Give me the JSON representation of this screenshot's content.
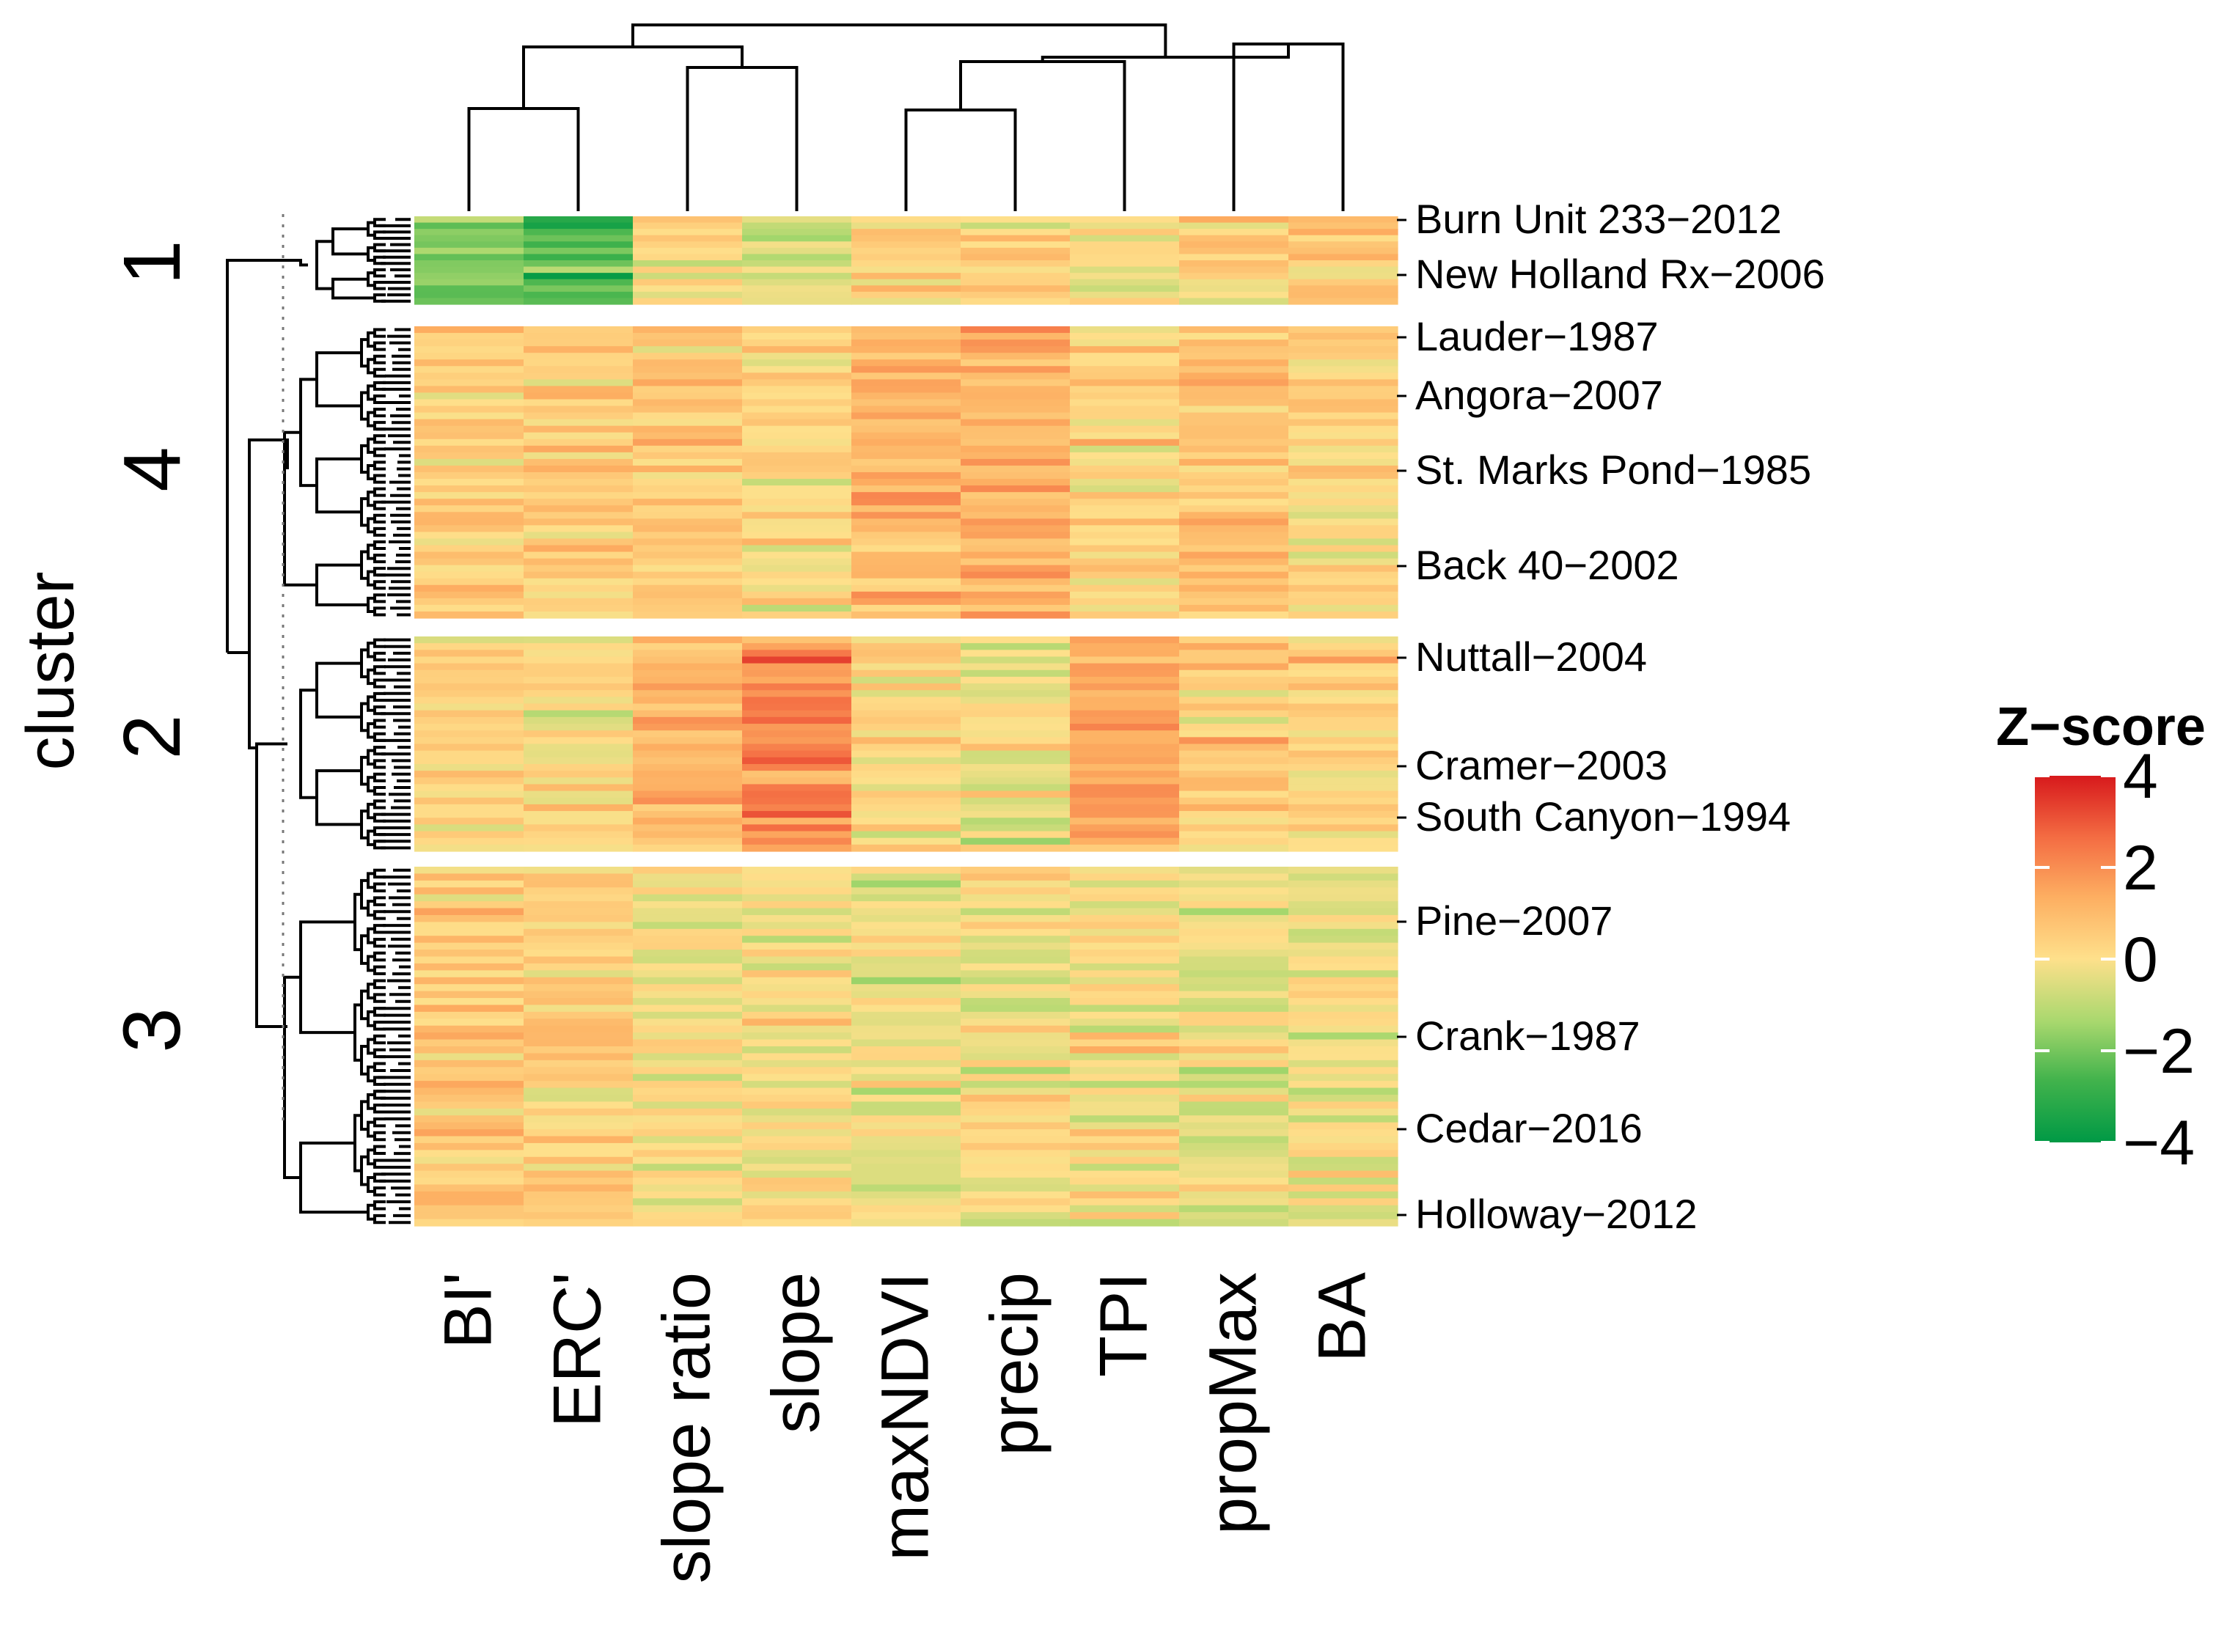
{
  "chart_data": {
    "type": "heatmap",
    "title": "",
    "columns": [
      "BI'",
      "ERC'",
      "slope ratio",
      "slope",
      "maxNDVI",
      "precip",
      "TPI",
      "propMax",
      "BA"
    ],
    "cluster_axis_title": "cluster",
    "clusters": [
      {
        "id": "1",
        "label": "1",
        "row_count": 14,
        "row_labels": [
          "Burn Unit 233−2012",
          "New Holland Rx−2006"
        ],
        "column_mean_zscores": [
          -2.0,
          -2.7,
          0.2,
          -0.7,
          0.1,
          0.4,
          -0.4,
          0.3,
          0.6
        ],
        "profile": [
          "L",
          "L",
          "M",
          "L",
          "M",
          "M",
          "L",
          "M",
          "M"
        ]
      },
      {
        "id": "4",
        "label": "4",
        "row_count": 44,
        "row_labels": [
          "Lauder−1987",
          "Angora−2007",
          "St. Marks Pond−1985",
          "Back 40−2002"
        ],
        "column_mean_zscores": [
          0.6,
          0.6,
          0.6,
          0.3,
          1.2,
          1.4,
          0.4,
          0.8,
          0.3
        ],
        "profile": [
          "M",
          "M",
          "M",
          "M",
          "H",
          "H",
          "M",
          "H",
          "M"
        ]
      },
      {
        "id": "2",
        "label": "2",
        "row_count": 32,
        "row_labels": [
          "Nuttall−2004",
          "Cramer−2003",
          "South Canyon−1994"
        ],
        "column_mean_zscores": [
          0.3,
          0.1,
          1.2,
          2.2,
          0.2,
          -0.3,
          1.6,
          0.7,
          0.4
        ],
        "profile": [
          "M",
          "M",
          "H",
          "H",
          "M",
          "L",
          "H",
          "H",
          "M"
        ]
      },
      {
        "id": "3",
        "label": "3",
        "row_count": 52,
        "row_labels": [
          "Pine−2007",
          "Crank−1987",
          "Cedar−2016",
          "Holloway−2012"
        ],
        "column_mean_zscores": [
          0.6,
          0.6,
          0.0,
          0.0,
          -0.4,
          -0.2,
          0.0,
          -0.3,
          -0.2
        ],
        "profile": [
          "M",
          "M",
          "M",
          "M",
          "L",
          "L",
          "M",
          "L",
          "L"
        ]
      }
    ],
    "color_scale": {
      "title": "Z−score",
      "min": -4,
      "max": 4,
      "ticks": [
        4,
        2,
        0,
        -2,
        -4
      ],
      "tick_labels": [
        "4",
        "2",
        "0",
        "−2",
        "−4"
      ],
      "colors": [
        "#009945",
        "#42b34c",
        "#a9d86e",
        "#fee08b",
        "#fdae61",
        "#f46d43",
        "#d7191c"
      ]
    },
    "column_dendrogram": true,
    "row_dendrogram": true
  }
}
